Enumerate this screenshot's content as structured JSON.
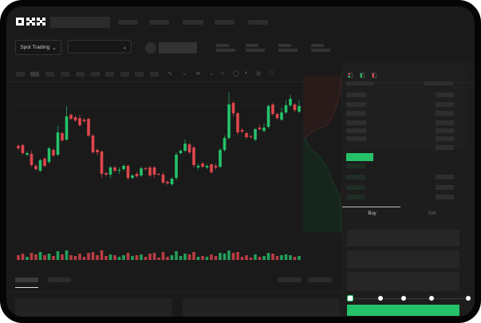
{
  "header": {
    "logo": "OKX"
  },
  "controls": {
    "market_type_label": "Spot Trading",
    "market_type_chevron": "chevron-down-icon",
    "pair_chevron": "chevron-down-icon"
  },
  "toolbar": {
    "icons": [
      "candle-type-icon",
      "chevron-down-icon",
      "indicator-icon",
      "chevron-down-icon",
      "line-icon",
      "ruler-icon",
      "camera-icon",
      "settings-icon",
      "fullscreen-icon"
    ]
  },
  "orderbook": {
    "view_icons": [
      "book-both-icon",
      "book-bids-icon",
      "book-asks-icon"
    ]
  },
  "trade": {
    "tabs": [
      {
        "label": "Buy",
        "active": true
      },
      {
        "label": "Sell",
        "active": false
      }
    ],
    "leverage_slider_value": 0,
    "slider_steps": 5
  },
  "colors": {
    "up": "#25c26a",
    "down": "#e0464d",
    "background": "#1a1a1a",
    "accent": "#25c26a"
  },
  "chart_data": {
    "type": "candlestick",
    "y_range": [
      0,
      155
    ],
    "candles": [
      [
        68,
        70,
        63,
        65
      ],
      [
        69,
        71,
        57,
        59
      ],
      [
        57,
        61,
        55,
        59
      ],
      [
        58,
        62,
        42,
        44
      ],
      [
        43,
        45,
        37,
        39
      ],
      [
        37,
        52,
        35,
        50
      ],
      [
        52,
        54,
        41,
        43
      ],
      [
        48,
        67,
        46,
        65
      ],
      [
        63,
        65,
        54,
        56
      ],
      [
        57,
        93,
        55,
        85
      ],
      [
        84,
        86,
        73,
        75
      ],
      [
        76,
        118,
        74,
        105
      ],
      [
        107,
        109,
        100,
        102
      ],
      [
        104,
        106,
        98,
        100
      ],
      [
        103,
        107,
        92,
        94
      ],
      [
        101,
        103,
        97,
        99
      ],
      [
        102,
        104,
        79,
        81
      ],
      [
        81,
        83,
        58,
        60
      ],
      [
        63,
        65,
        56,
        60
      ],
      [
        61,
        63,
        28,
        33
      ],
      [
        34,
        36,
        30,
        32
      ],
      [
        32,
        43,
        28,
        41
      ],
      [
        41,
        43,
        35,
        37
      ],
      [
        37,
        41,
        33,
        38
      ],
      [
        39,
        45,
        37,
        43
      ],
      [
        43,
        45,
        25,
        28
      ],
      [
        28,
        33,
        26,
        31
      ],
      [
        33,
        35,
        28,
        30
      ],
      [
        31,
        42,
        29,
        40
      ],
      [
        40,
        42,
        37,
        39
      ],
      [
        41,
        43,
        29,
        31
      ],
      [
        41,
        43,
        28,
        32
      ],
      [
        33,
        34,
        31,
        32
      ],
      [
        32,
        35,
        20,
        22
      ],
      [
        23,
        25,
        19,
        21
      ],
      [
        20,
        29,
        18,
        27
      ],
      [
        28,
        60,
        25,
        57
      ],
      [
        59,
        64,
        57,
        62
      ],
      [
        62,
        76,
        60,
        71
      ],
      [
        70,
        72,
        58,
        60
      ],
      [
        66,
        68,
        41,
        44
      ],
      [
        41,
        46,
        38,
        43
      ],
      [
        46,
        48,
        40,
        42
      ],
      [
        41,
        45,
        39,
        43
      ],
      [
        45,
        46,
        33,
        35
      ],
      [
        43,
        46,
        38,
        41
      ],
      [
        42,
        65,
        40,
        63
      ],
      [
        63,
        81,
        61,
        78
      ],
      [
        78,
        135,
        76,
        120
      ],
      [
        122,
        124,
        105,
        109
      ],
      [
        109,
        111,
        82,
        85
      ],
      [
        88,
        90,
        84,
        86
      ],
      [
        84,
        86,
        77,
        79
      ],
      [
        80,
        82,
        77,
        79
      ],
      [
        76,
        91,
        74,
        89
      ],
      [
        91,
        95,
        87,
        89
      ],
      [
        87,
        96,
        85,
        91
      ],
      [
        92,
        120,
        90,
        118
      ],
      [
        120,
        122,
        106,
        108
      ],
      [
        108,
        110,
        101,
        103
      ],
      [
        101,
        116,
        99,
        110
      ],
      [
        110,
        125,
        108,
        119
      ],
      [
        119,
        132,
        117,
        127
      ],
      [
        120,
        122,
        110,
        113
      ],
      [
        111,
        125,
        109,
        118
      ]
    ],
    "volumes": [
      6,
      8,
      4,
      9,
      7,
      10,
      6,
      8,
      5,
      11,
      7,
      12,
      6,
      5,
      8,
      4,
      9,
      10,
      6,
      12,
      5,
      7,
      6,
      4,
      6,
      9,
      5,
      6,
      7,
      4,
      8,
      9,
      3,
      10,
      4,
      6,
      11,
      5,
      8,
      7,
      10,
      4,
      5,
      4,
      7,
      5,
      9,
      8,
      12,
      9,
      10,
      4,
      6,
      3,
      7,
      4,
      5,
      9,
      8,
      5,
      6,
      7,
      6,
      4,
      5
    ]
  }
}
